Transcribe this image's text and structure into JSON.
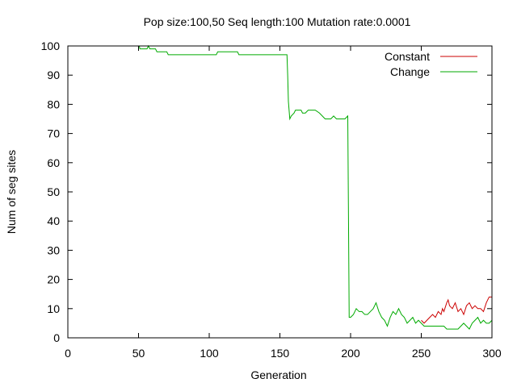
{
  "chart_data": {
    "type": "line",
    "title": "Pop size:100,50 Seq length:100 Mutation rate:0.0001",
    "xlabel": "Generation",
    "ylabel": "Num of seg sites",
    "xlim": [
      0,
      300
    ],
    "ylim": [
      0,
      100
    ],
    "xticks": [
      0,
      50,
      100,
      150,
      200,
      250,
      300
    ],
    "yticks": [
      0,
      10,
      20,
      30,
      40,
      50,
      60,
      70,
      80,
      90,
      100
    ],
    "grid": false,
    "legend_position": "top-right",
    "series": [
      {
        "name": "Constant",
        "color": "#cc0000",
        "x": [
          250,
          252,
          254,
          256,
          258,
          260,
          262,
          264,
          265,
          266,
          268,
          269,
          270,
          272,
          274,
          276,
          278,
          280,
          282,
          284,
          286,
          288,
          290,
          292,
          294,
          296,
          298,
          300
        ],
        "y": [
          6,
          5,
          6,
          7,
          8,
          7,
          9,
          8,
          10,
          9,
          12,
          13,
          11,
          10,
          12,
          9,
          10,
          8,
          11,
          12,
          10,
          11,
          10,
          10,
          9,
          12,
          14,
          14
        ]
      },
      {
        "name": "Change",
        "color": "#00aa00",
        "x": [
          50,
          50.5,
          51,
          56,
          57,
          58,
          62,
          63,
          70,
          71,
          105,
          106,
          120,
          121,
          155,
          155.5,
          156,
          157,
          158,
          160,
          161,
          165,
          166,
          168,
          170,
          172,
          175,
          178,
          180,
          182,
          184,
          186,
          188,
          190,
          192,
          194,
          196,
          198,
          198.5,
          199,
          200,
          202,
          204,
          206,
          208,
          210,
          212,
          214,
          216,
          218,
          220,
          222,
          224,
          226,
          228,
          230,
          232,
          234,
          236,
          238,
          240,
          242,
          244,
          246,
          248,
          250,
          252,
          254,
          256,
          258,
          260,
          262,
          264,
          266,
          268,
          270,
          272,
          274,
          276,
          278,
          280,
          282,
          284,
          286,
          288,
          290,
          292,
          294,
          296,
          298,
          300
        ],
        "y": [
          100,
          100,
          99,
          99,
          100,
          99,
          99,
          98,
          98,
          97,
          97,
          98,
          98,
          97,
          97,
          90,
          81,
          75,
          76,
          77,
          78,
          78,
          77,
          77,
          78,
          78,
          78,
          77,
          76,
          75,
          75,
          75,
          76,
          75,
          75,
          75,
          75,
          76,
          42,
          7,
          7,
          8,
          10,
          9,
          9,
          8,
          8,
          9,
          10,
          12,
          9,
          7,
          6,
          4,
          7,
          9,
          8,
          10,
          8,
          7,
          5,
          6,
          7,
          5,
          6,
          5,
          4,
          4,
          4,
          4,
          4,
          4,
          4,
          4,
          3,
          3,
          3,
          3,
          3,
          4,
          5,
          4,
          3,
          5,
          6,
          7,
          5,
          6,
          5,
          5,
          6
        ]
      }
    ]
  }
}
